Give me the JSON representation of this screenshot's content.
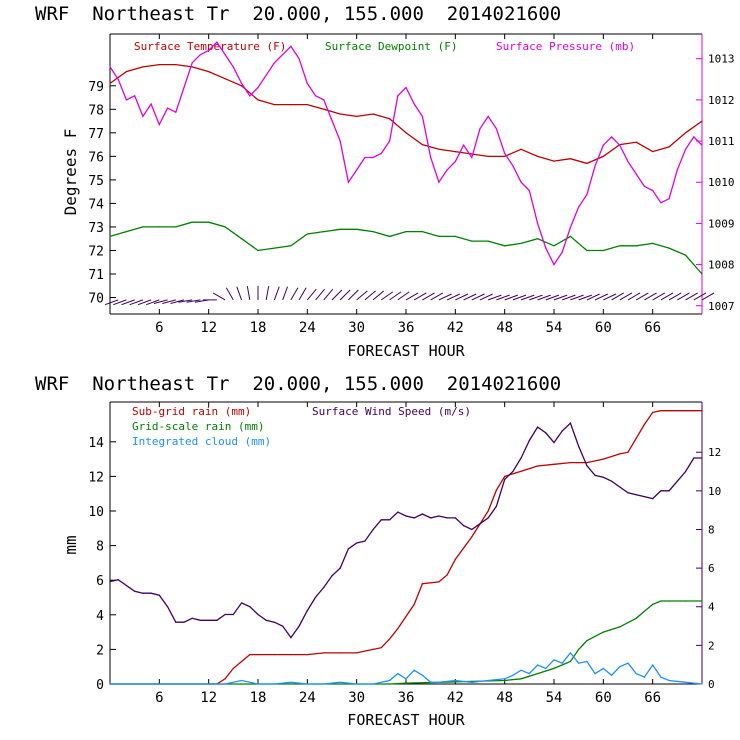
{
  "chart_data": [
    {
      "type": "line",
      "title": "WRF  Northeast Tr  20.000, 155.000  2014021600",
      "xlabel": "FORECAST HOUR",
      "ylabel": "Degrees F",
      "xlim": [
        0,
        72
      ],
      "ylim": [
        69.3,
        81.2
      ],
      "y2lim": [
        1006.8,
        1013.6
      ],
      "xticks": [
        6,
        12,
        18,
        24,
        30,
        36,
        42,
        48,
        54,
        60,
        66
      ],
      "yticks": [
        70,
        71,
        72,
        73,
        74,
        75,
        76,
        77,
        78,
        79
      ],
      "y2ticks": [
        1007,
        1008,
        1009,
        1010,
        1011,
        1012,
        1013
      ],
      "series": [
        {
          "name": "Surface Temperature (F)",
          "axis": "left",
          "color": "#c00000",
          "x": [
            0,
            2,
            4,
            6,
            8,
            10,
            12,
            14,
            16,
            18,
            20,
            22,
            24,
            26,
            28,
            30,
            32,
            34,
            36,
            38,
            40,
            42,
            44,
            46,
            48,
            50,
            52,
            54,
            56,
            58,
            60,
            62,
            64,
            66,
            68,
            70,
            72
          ],
          "y": [
            79.1,
            79.6,
            79.8,
            79.9,
            79.9,
            79.8,
            79.6,
            79.3,
            79.0,
            78.4,
            78.2,
            78.2,
            78.2,
            78.0,
            77.8,
            77.7,
            77.8,
            77.6,
            77.0,
            76.5,
            76.3,
            76.2,
            76.1,
            76.0,
            76.0,
            76.3,
            76.0,
            75.8,
            75.9,
            75.7,
            76.0,
            76.5,
            76.6,
            76.2,
            76.4,
            77.0,
            77.5
          ]
        },
        {
          "name": "Surface Dewpoint (F)",
          "axis": "left",
          "color": "#008000",
          "x": [
            0,
            2,
            4,
            6,
            8,
            10,
            12,
            14,
            16,
            18,
            20,
            22,
            24,
            26,
            28,
            30,
            32,
            34,
            36,
            38,
            40,
            42,
            44,
            46,
            48,
            50,
            52,
            54,
            56,
            58,
            60,
            62,
            64,
            66,
            68,
            70,
            72
          ],
          "y": [
            72.6,
            72.8,
            73.0,
            73.0,
            73.0,
            73.2,
            73.2,
            73.0,
            72.5,
            72.0,
            72.1,
            72.2,
            72.7,
            72.8,
            72.9,
            72.9,
            72.8,
            72.6,
            72.8,
            72.8,
            72.6,
            72.6,
            72.4,
            72.4,
            72.2,
            72.3,
            72.5,
            72.2,
            72.6,
            72.0,
            72.0,
            72.2,
            72.2,
            72.3,
            72.1,
            71.8,
            71.0
          ]
        },
        {
          "name": "Surface Pressure (mb)",
          "axis": "right",
          "color": "#e000e0",
          "x": [
            0,
            1,
            2,
            3,
            4,
            5,
            6,
            7,
            8,
            9,
            10,
            11,
            12,
            13,
            14,
            15,
            16,
            17,
            18,
            19,
            20,
            21,
            22,
            23,
            24,
            25,
            26,
            27,
            28,
            29,
            30,
            31,
            32,
            33,
            34,
            35,
            36,
            37,
            38,
            39,
            40,
            41,
            42,
            43,
            44,
            45,
            46,
            47,
            48,
            49,
            50,
            51,
            52,
            53,
            54,
            55,
            56,
            57,
            58,
            59,
            60,
            61,
            62,
            63,
            64,
            65,
            66,
            67,
            68,
            69,
            70,
            71,
            72
          ],
          "y": [
            1012.8,
            1012.5,
            1012.0,
            1012.1,
            1011.6,
            1011.9,
            1011.4,
            1011.8,
            1011.7,
            1012.3,
            1012.9,
            1013.1,
            1013.2,
            1013.4,
            1013.1,
            1012.8,
            1012.4,
            1012.1,
            1012.3,
            1012.6,
            1012.9,
            1013.1,
            1013.3,
            1013.0,
            1012.4,
            1012.1,
            1012.0,
            1011.5,
            1011.0,
            1010.0,
            1010.3,
            1010.6,
            1010.6,
            1010.7,
            1011.0,
            1012.1,
            1012.3,
            1011.9,
            1011.6,
            1010.6,
            1010.0,
            1010.3,
            1010.5,
            1010.9,
            1010.6,
            1011.3,
            1011.6,
            1011.3,
            1010.7,
            1010.4,
            1010.0,
            1009.8,
            1009.0,
            1008.4,
            1008.0,
            1008.3,
            1008.9,
            1009.4,
            1009.7,
            1010.4,
            1010.9,
            1011.1,
            1010.9,
            1010.5,
            1010.2,
            1009.9,
            1009.8,
            1009.5,
            1009.6,
            1010.3,
            1010.8,
            1011.1,
            1010.9
          ]
        }
      ],
      "wind_barbs": {
        "x": [
          1,
          2,
          3,
          4,
          5,
          6,
          7,
          8,
          9,
          10,
          11,
          12,
          13,
          14,
          15,
          16,
          17,
          18,
          19,
          20,
          21,
          22,
          23,
          24,
          25,
          26,
          27,
          28,
          29,
          30,
          31,
          32,
          33,
          34,
          35,
          36,
          37,
          38,
          39,
          40,
          41,
          42,
          43,
          44,
          45,
          46,
          47,
          48,
          49,
          50,
          51,
          52,
          53,
          54,
          55,
          56,
          57,
          58,
          59,
          60,
          61,
          62,
          63,
          64,
          65,
          66,
          67,
          68,
          69,
          70,
          71,
          72
        ],
        "direction_deg": [
          250,
          250,
          250,
          250,
          250,
          250,
          255,
          255,
          255,
          260,
          260,
          260,
          270,
          300,
          330,
          340,
          350,
          0,
          10,
          20,
          20,
          30,
          30,
          40,
          40,
          40,
          45,
          45,
          45,
          50,
          50,
          50,
          55,
          55,
          55,
          60,
          60,
          60,
          60,
          65,
          65,
          65,
          65,
          65,
          65,
          70,
          70,
          70,
          70,
          70,
          70,
          70,
          70,
          70,
          70,
          70,
          70,
          65,
          65,
          65,
          60,
          60,
          60,
          60,
          60,
          60,
          60,
          60,
          60,
          60,
          60,
          60
        ],
        "level": 69.9
      }
    },
    {
      "type": "line",
      "title": "WRF  Northeast Tr  20.000, 155.000  2014021600",
      "xlabel": "FORECAST HOUR",
      "ylabel": "mm",
      "xlim": [
        0,
        72
      ],
      "ylim": [
        0,
        16.3
      ],
      "y2lim": [
        0,
        14.6
      ],
      "xticks": [
        6,
        12,
        18,
        24,
        30,
        36,
        42,
        48,
        54,
        60,
        66
      ],
      "yticks": [
        0,
        2,
        4,
        6,
        8,
        10,
        12,
        14
      ],
      "y2ticks": [
        0,
        2,
        4,
        6,
        8,
        10,
        12
      ],
      "series": [
        {
          "name": "Sub-grid rain (mm)",
          "axis": "left",
          "color": "#c00000",
          "x": [
            0,
            13,
            14,
            15,
            16,
            17,
            18,
            20,
            22,
            24,
            26,
            28,
            30,
            32,
            33,
            34,
            35,
            36,
            37,
            38,
            40,
            41,
            42,
            44,
            46,
            47,
            48,
            50,
            52,
            54,
            56,
            58,
            60,
            62,
            63,
            64,
            65,
            66,
            67,
            68,
            70,
            72
          ],
          "y": [
            0,
            0,
            0.3,
            0.9,
            1.3,
            1.7,
            1.7,
            1.7,
            1.7,
            1.7,
            1.8,
            1.8,
            1.8,
            2.0,
            2.1,
            2.6,
            3.2,
            3.9,
            4.6,
            5.8,
            5.9,
            6.3,
            7.2,
            8.5,
            10.0,
            11.2,
            12.0,
            12.3,
            12.6,
            12.7,
            12.8,
            12.8,
            13.0,
            13.3,
            13.4,
            14.2,
            15.0,
            15.7,
            15.8,
            15.8,
            15.8,
            15.8
          ]
        },
        {
          "name": "Grid-scale rain (mm)",
          "axis": "left",
          "color": "#008000",
          "x": [
            0,
            34,
            36,
            40,
            44,
            48,
            50,
            52,
            54,
            56,
            57,
            58,
            60,
            62,
            64,
            65,
            66,
            67,
            68,
            70,
            72
          ],
          "y": [
            0,
            0,
            0.05,
            0.1,
            0.15,
            0.2,
            0.3,
            0.6,
            0.9,
            1.3,
            2.0,
            2.5,
            3.0,
            3.3,
            3.8,
            4.2,
            4.6,
            4.8,
            4.8,
            4.8,
            4.8
          ]
        },
        {
          "name": "Integrated cloud (mm)",
          "axis": "left",
          "color": "#1e90ff",
          "x": [
            0,
            14,
            16,
            18,
            20,
            22,
            24,
            26,
            28,
            30,
            32,
            34,
            35,
            36,
            37,
            38,
            39,
            40,
            42,
            44,
            46,
            48,
            49,
            50,
            51,
            52,
            53,
            54,
            55,
            56,
            57,
            58,
            59,
            60,
            61,
            62,
            63,
            64,
            65,
            66,
            67,
            68,
            70,
            72
          ],
          "y": [
            0,
            0,
            0.2,
            0,
            0,
            0.1,
            0,
            0,
            0.1,
            0,
            0,
            0.2,
            0.6,
            0.3,
            0.8,
            0.5,
            0.1,
            0.1,
            0.2,
            0.1,
            0.2,
            0.3,
            0.5,
            0.8,
            0.6,
            1.1,
            0.9,
            1.4,
            1.2,
            1.8,
            1.2,
            1.3,
            0.6,
            0.9,
            0.5,
            1.0,
            1.2,
            0.6,
            0.4,
            1.1,
            0.4,
            0.2,
            0.1,
            0
          ]
        },
        {
          "name": "Surface Wind Speed (m/s)",
          "axis": "right",
          "color": "#400060",
          "x": [
            0,
            1,
            2,
            3,
            4,
            5,
            6,
            7,
            8,
            9,
            10,
            11,
            12,
            13,
            14,
            15,
            16,
            17,
            18,
            19,
            20,
            21,
            22,
            23,
            24,
            25,
            26,
            27,
            28,
            29,
            30,
            31,
            32,
            33,
            34,
            35,
            36,
            37,
            38,
            39,
            40,
            41,
            42,
            43,
            44,
            45,
            46,
            47,
            48,
            49,
            50,
            51,
            52,
            53,
            54,
            55,
            56,
            57,
            58,
            59,
            60,
            61,
            62,
            63,
            64,
            65,
            66,
            67,
            68,
            69,
            70,
            71,
            72
          ],
          "y": [
            5.3,
            5.4,
            5.1,
            4.8,
            4.7,
            4.7,
            4.6,
            4.0,
            3.2,
            3.2,
            3.4,
            3.3,
            3.3,
            3.3,
            3.6,
            3.6,
            4.2,
            4.0,
            3.6,
            3.3,
            3.2,
            3.0,
            2.4,
            3.0,
            3.8,
            4.5,
            5.0,
            5.6,
            6.0,
            7.0,
            7.3,
            7.4,
            8.0,
            8.5,
            8.5,
            8.9,
            8.7,
            8.6,
            8.8,
            8.6,
            8.7,
            8.6,
            8.6,
            8.2,
            8.0,
            8.3,
            8.6,
            9.2,
            10.6,
            11.0,
            11.7,
            12.6,
            13.3,
            13.0,
            12.5,
            13.1,
            13.5,
            12.3,
            11.3,
            10.8,
            10.7,
            10.5,
            10.2,
            9.9,
            9.8,
            9.7,
            9.6,
            10.0,
            10.0,
            10.5,
            11.0,
            11.7,
            11.7
          ]
        }
      ]
    }
  ]
}
